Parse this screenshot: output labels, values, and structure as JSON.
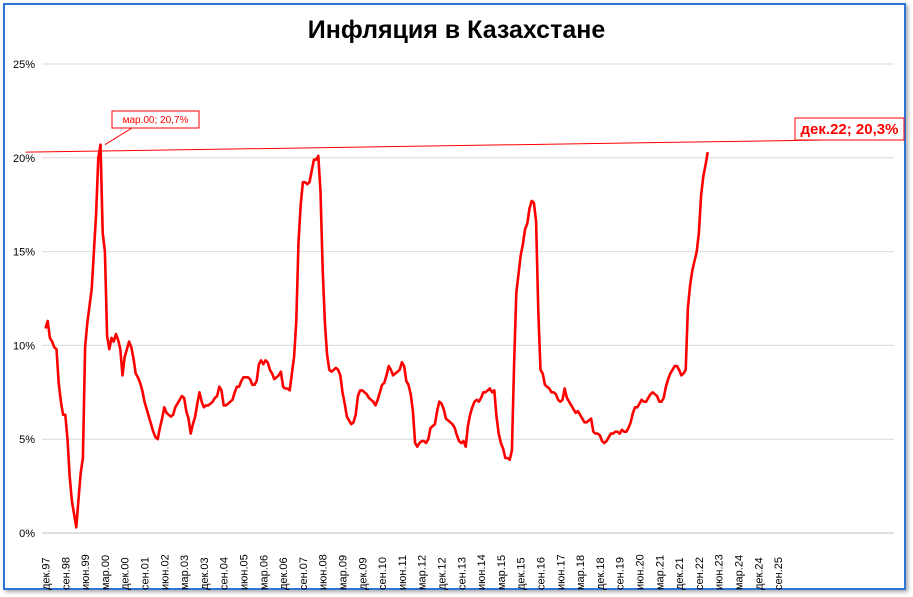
{
  "chart_data": {
    "type": "line",
    "title": "Инфляция в Казахстане",
    "xlabel": "",
    "ylabel": "",
    "ylim": [
      0,
      25
    ],
    "yticks": [
      "0%",
      "5%",
      "10%",
      "15%",
      "20%",
      "25%"
    ],
    "grid": true,
    "line_color": "#ff0000",
    "x_tick_labels": [
      "дек.97",
      "сен.98",
      "июн.99",
      "мар.00",
      "дек.00",
      "сен.01",
      "июн.02",
      "мар.03",
      "дек.03",
      "сен.04",
      "июн.05",
      "мар.06",
      "дек.06",
      "сен.07",
      "июн.08",
      "мар.09",
      "дек.09",
      "сен.10",
      "июн.11",
      "мар.12",
      "дек.12",
      "сен.13",
      "июн.14",
      "мар.15",
      "дек.15",
      "сен.16",
      "июн.17",
      "мар.18",
      "дек.18",
      "сен.19",
      "июн.20",
      "мар.21",
      "дек.21",
      "сен.22",
      "июн.23",
      "мар.24",
      "дек.24",
      "сен.25"
    ],
    "annotations": [
      {
        "label": "мар.00; 20,7%",
        "x": "мар.00",
        "y": 20.7
      },
      {
        "label": "дек.22; 20,3%",
        "x": "дек.22",
        "y": 20.3
      }
    ],
    "series": [
      {
        "values": [
          10.9,
          11.3,
          10.4,
          10.2,
          9.9,
          9.8,
          8.0,
          7.0,
          6.3,
          6.3,
          5.0,
          3.0,
          1.7,
          1.0,
          0.3,
          1.8,
          3.2,
          4.0,
          9.9,
          11.2,
          12.1,
          13.0,
          15.0,
          17.0,
          20.0,
          20.7,
          16.0,
          15.0,
          10.5,
          9.8,
          10.4,
          10.2,
          10.6,
          10.3,
          9.8,
          8.4,
          9.4,
          9.8,
          10.2,
          9.9,
          9.3,
          8.5,
          8.3,
          8.0,
          7.6,
          7.0,
          6.6,
          6.2,
          5.8,
          5.4,
          5.1,
          5.0,
          5.6,
          6.1,
          6.7,
          6.4,
          6.3,
          6.2,
          6.3,
          6.7,
          6.9,
          7.1,
          7.3,
          7.2,
          6.5,
          6.1,
          5.3,
          5.8,
          6.2,
          6.9,
          7.5,
          7.0,
          6.7,
          6.8,
          6.8,
          6.9,
          7.0,
          7.2,
          7.3,
          7.8,
          7.6,
          6.8,
          6.8,
          6.9,
          7.0,
          7.1,
          7.5,
          7.8,
          7.8,
          8.1,
          8.3,
          8.3,
          8.3,
          8.2,
          7.9,
          7.9,
          8.1,
          9.0,
          9.2,
          9.0,
          9.2,
          9.1,
          8.7,
          8.5,
          8.2,
          8.3,
          8.4,
          8.6,
          7.8,
          7.7,
          7.7,
          7.6,
          8.5,
          9.4,
          11.3,
          15.5,
          17.5,
          18.7,
          18.7,
          18.6,
          18.7,
          19.3,
          19.9,
          19.9,
          20.1,
          18.2,
          14.0,
          11.2,
          9.5,
          8.7,
          8.6,
          8.7,
          8.8,
          8.7,
          8.4,
          7.5,
          6.9,
          6.2,
          6.0,
          5.8,
          5.9,
          6.3,
          7.3,
          7.6,
          7.6,
          7.5,
          7.4,
          7.2,
          7.1,
          7.0,
          6.8,
          7.1,
          7.5,
          7.9,
          8.0,
          8.4,
          8.9,
          8.7,
          8.4,
          8.5,
          8.6,
          8.7,
          9.1,
          8.9,
          8.1,
          7.9,
          7.4,
          6.5,
          4.8,
          4.6,
          4.8,
          4.9,
          4.9,
          4.8,
          5.0,
          5.6,
          5.7,
          5.8,
          6.5,
          7.0,
          6.9,
          6.6,
          6.1,
          6.0,
          5.9,
          5.8,
          5.6,
          5.2,
          4.9,
          4.8,
          4.9,
          4.6,
          5.7,
          6.3,
          6.7,
          7.0,
          7.1,
          7.0,
          7.2,
          7.5,
          7.5,
          7.6,
          7.7,
          7.5,
          7.6,
          6.2,
          5.3,
          4.8,
          4.5,
          4.0,
          4.0,
          3.9,
          4.4,
          9.0,
          12.8,
          13.8,
          14.8,
          15.4,
          16.2,
          16.5,
          17.3,
          17.7,
          17.6,
          16.6,
          11.8,
          8.7,
          8.5,
          7.9,
          7.8,
          7.7,
          7.5,
          7.5,
          7.4,
          7.1,
          7.0,
          7.1,
          7.7,
          7.2,
          7.0,
          6.8,
          6.6,
          6.4,
          6.5,
          6.3,
          6.1,
          5.9,
          5.9,
          6.0,
          6.1,
          5.4,
          5.3,
          5.3,
          5.2,
          4.9,
          4.8,
          4.9,
          5.1,
          5.3,
          5.3,
          5.4,
          5.4,
          5.3,
          5.5,
          5.4,
          5.4,
          5.6,
          5.9,
          6.4,
          6.7,
          6.7,
          6.9,
          7.1,
          7.0,
          7.0,
          7.2,
          7.4,
          7.5,
          7.4,
          7.3,
          7.0,
          7.0,
          7.2,
          7.8,
          8.2,
          8.5,
          8.7,
          8.9,
          8.9,
          8.7,
          8.4,
          8.5,
          8.7,
          12.0,
          13.2,
          14.0,
          14.5,
          15.0,
          16.0,
          18.0,
          19.0,
          19.6,
          20.3
        ]
      }
    ]
  }
}
